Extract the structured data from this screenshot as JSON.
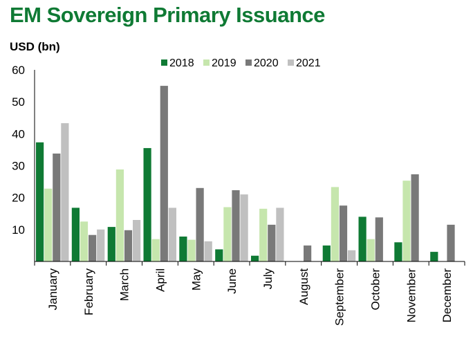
{
  "chart_data": {
    "type": "bar",
    "title": "EM Sovereign Primary Issuance",
    "ylabel": "USD (bn)",
    "xlabel": "",
    "ylim": [
      0,
      60
    ],
    "yticks": [
      10,
      20,
      30,
      40,
      50,
      60
    ],
    "categories": [
      "January",
      "February",
      "March",
      "April",
      "May",
      "June",
      "July",
      "August",
      "September",
      "October",
      "November",
      "December"
    ],
    "series": [
      {
        "name": "2018",
        "color": "#0f7a34",
        "values": [
          37.3,
          16.8,
          10.8,
          35.5,
          7.8,
          3.8,
          1.8,
          0,
          5.0,
          14.0,
          6.0,
          3.0
        ]
      },
      {
        "name": "2019",
        "color": "#c6e6ad",
        "values": [
          22.8,
          12.5,
          28.8,
          7.0,
          6.8,
          17.0,
          16.5,
          0,
          23.3,
          7.0,
          25.3,
          0
        ]
      },
      {
        "name": "2020",
        "color": "#797979",
        "values": [
          33.8,
          8.3,
          9.8,
          55.0,
          23.0,
          22.3,
          11.5,
          5.0,
          17.5,
          13.8,
          27.3,
          11.5
        ]
      },
      {
        "name": "2021",
        "color": "#c0c0c0",
        "values": [
          43.3,
          10.0,
          13.0,
          16.8,
          6.3,
          21.0,
          16.8,
          0,
          3.5,
          0,
          0,
          0
        ]
      }
    ],
    "legend_position": "top-center",
    "grid": false
  }
}
